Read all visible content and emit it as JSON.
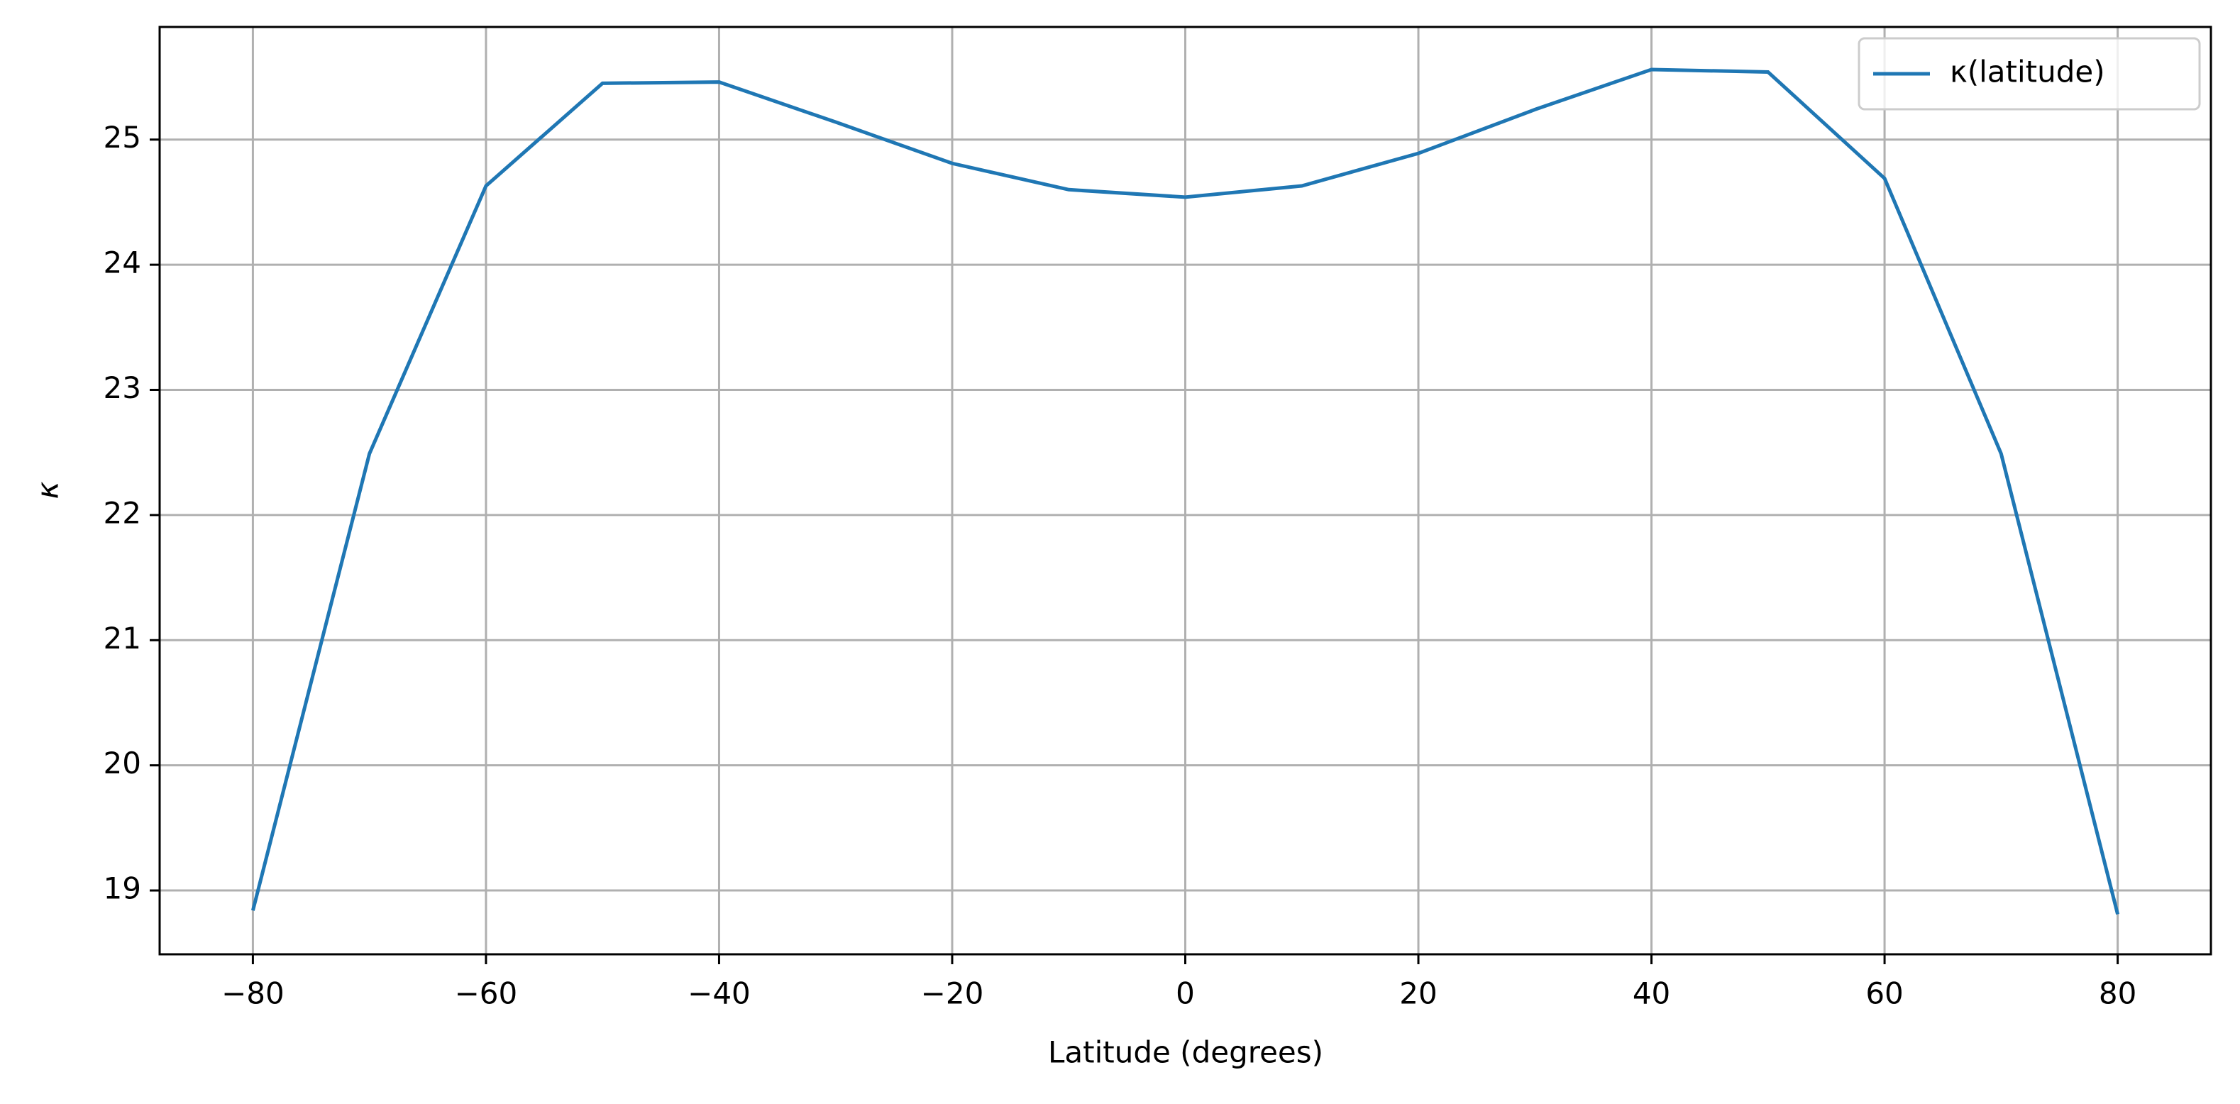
{
  "chart_data": {
    "type": "line",
    "xlabel": "Latitude (degrees)",
    "ylabel": "κ",
    "x": [
      -80,
      -70,
      -60,
      -50,
      -40,
      -30,
      -20,
      -10,
      0,
      10,
      20,
      30,
      40,
      50,
      60,
      70,
      80
    ],
    "series": [
      {
        "name": "κ(latitude)",
        "color": "#1f77b4",
        "values": [
          18.84,
          22.49,
          24.63,
          25.45,
          25.46,
          25.14,
          24.81,
          24.6,
          24.54,
          24.63,
          24.89,
          25.24,
          25.56,
          25.54,
          24.69,
          22.49,
          18.81
        ]
      }
    ],
    "xlim": [
      -88,
      88
    ],
    "ylim": [
      18.49,
      25.9
    ],
    "xticks": [
      {
        "value": -80,
        "label": "−80"
      },
      {
        "value": -60,
        "label": "−60"
      },
      {
        "value": -40,
        "label": "−40"
      },
      {
        "value": -20,
        "label": "−20"
      },
      0,
      20,
      40,
      60,
      80
    ],
    "yticks": [
      19,
      20,
      21,
      22,
      23,
      24,
      25
    ],
    "grid": true,
    "legend": "upper right"
  }
}
